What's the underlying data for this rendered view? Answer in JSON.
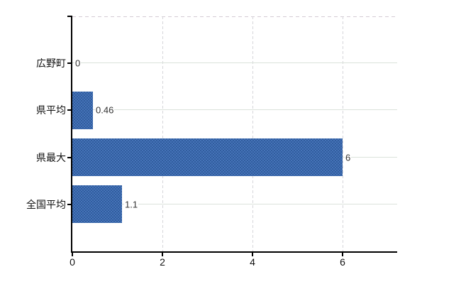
{
  "chart_theme": {
    "background": "#ffffff",
    "axis_color": "#000000",
    "bar_color": "#3b69ac",
    "bar_color_light": "#4573b8",
    "bar_color_dark": "#315d9e",
    "hgrid_color": "#dbe2db",
    "vgrid_color": "#d6d6da",
    "top_border_color": "#d5cbd5",
    "label_color": "#111111",
    "value_label_color": "#333333"
  },
  "chart_data": {
    "type": "bar",
    "orientation": "horizontal",
    "title": "",
    "xlabel": "",
    "ylabel": "",
    "categories": [
      "広野町",
      "県平均",
      "県最大",
      "全国平均"
    ],
    "values": [
      0,
      0.46,
      6,
      1.1
    ],
    "value_labels": [
      "0",
      "0.46",
      "6",
      "1.1"
    ],
    "xticks": [
      0,
      2,
      4,
      6
    ],
    "xtick_labels": [
      "0",
      "2",
      "4",
      "6"
    ],
    "xlim": [
      0,
      7.2
    ],
    "grid": true,
    "legend": false
  }
}
